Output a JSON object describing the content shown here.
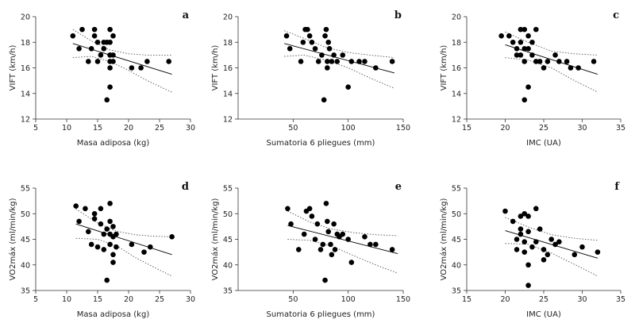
{
  "figure": {
    "panel_count": 6
  },
  "chart_data": [
    {
      "type": "scatter",
      "label": "a",
      "xlabel": "Masa adiposa (kg)",
      "ylabel": "VIFT (km/h)",
      "xlim": [
        5,
        30
      ],
      "ylim": [
        12,
        20
      ],
      "xticks": [
        5,
        10,
        15,
        20,
        25,
        30
      ],
      "yticks": [
        12,
        14,
        16,
        18,
        20
      ],
      "x": [
        11,
        12,
        12.5,
        13.5,
        14,
        14.5,
        14.5,
        15,
        15,
        15.5,
        16,
        16,
        16.5,
        16.5,
        17,
        17,
        17,
        17,
        17,
        17,
        17,
        17.5,
        17.5,
        17.5,
        20.5,
        22,
        23,
        26.5
      ],
      "y": [
        18.5,
        17.5,
        19,
        16.5,
        17.5,
        19,
        18.5,
        18,
        16.5,
        17,
        18,
        17.5,
        13.5,
        18,
        19,
        18,
        17,
        16.5,
        16,
        14.5,
        17,
        18.5,
        17,
        16.5,
        16,
        16,
        16.5,
        16.5
      ],
      "fit_line": [
        [
          11,
          17.9
        ],
        [
          27,
          15.5
        ]
      ],
      "ci_upper": [
        [
          11,
          19.0
        ],
        [
          14,
          18.1
        ],
        [
          17,
          17.4
        ],
        [
          20,
          17.1
        ],
        [
          23,
          17.0
        ],
        [
          27,
          17.0
        ]
      ],
      "ci_lower": [
        [
          11,
          16.8
        ],
        [
          14,
          16.9
        ],
        [
          17,
          16.5
        ],
        [
          20,
          15.8
        ],
        [
          23,
          15.0
        ],
        [
          27,
          14.1
        ]
      ],
      "colors": {
        "points": "#000000",
        "line": "#000000",
        "ci": "#555555"
      }
    },
    {
      "type": "scatter",
      "label": "b",
      "xlabel": "Sumatoria 6 pliegues (mm)",
      "ylabel": "VIFT (km/h)",
      "xlim": [
        0,
        150
      ],
      "ylim": [
        12,
        20
      ],
      "xticks": [
        50,
        100,
        150
      ],
      "yticks": [
        12,
        14,
        16,
        18,
        20
      ],
      "x": [
        44,
        47,
        57,
        59,
        61,
        63,
        65,
        67,
        70,
        73,
        76,
        78,
        79,
        80,
        81,
        81,
        82,
        83,
        85,
        87,
        90,
        95,
        100,
        103,
        110,
        115,
        125,
        140
      ],
      "y": [
        18.5,
        17.5,
        16.5,
        18,
        19,
        19,
        18.5,
        18,
        17.5,
        16.5,
        17,
        13.5,
        18.5,
        19,
        16.5,
        16,
        18,
        17.5,
        16.5,
        17,
        16.5,
        17,
        14.5,
        16.5,
        16.5,
        16.5,
        16,
        16.5
      ],
      "fit_line": [
        [
          42,
          17.9
        ],
        [
          142,
          15.6
        ]
      ],
      "ci_upper": [
        [
          42,
          18.9
        ],
        [
          60,
          18.3
        ],
        [
          80,
          17.6
        ],
        [
          100,
          17.2
        ],
        [
          120,
          17.0
        ],
        [
          142,
          16.8
        ]
      ],
      "ci_lower": [
        [
          42,
          16.9
        ],
        [
          60,
          17.0
        ],
        [
          80,
          16.6
        ],
        [
          100,
          16.0
        ],
        [
          120,
          15.2
        ],
        [
          142,
          14.4
        ]
      ],
      "colors": {
        "points": "#000000",
        "line": "#000000",
        "ci": "#555555"
      }
    },
    {
      "type": "scatter",
      "label": "c",
      "xlabel": "IMC (UA)",
      "ylabel": "VIFT (km/h)",
      "xlim": [
        15,
        35
      ],
      "ylim": [
        12,
        20
      ],
      "xticks": [
        15,
        20,
        25,
        30,
        35
      ],
      "yticks": [
        12,
        14,
        16,
        18,
        20
      ],
      "x": [
        19.5,
        20.5,
        21,
        21.5,
        21.5,
        22,
        22,
        22,
        22.5,
        22.5,
        22.5,
        22.5,
        23,
        23,
        23,
        23.5,
        23.5,
        24,
        24,
        24.5,
        25,
        25.5,
        26.5,
        27,
        28,
        28.5,
        29.5,
        31.5
      ],
      "y": [
        18.5,
        18.5,
        18,
        17.5,
        17,
        19,
        18,
        17,
        19,
        17.5,
        16.5,
        13.5,
        18.5,
        17.5,
        14.5,
        18,
        17,
        19,
        16.5,
        16.5,
        16,
        16.5,
        17,
        16.5,
        16.5,
        16,
        16,
        16.5
      ],
      "fit_line": [
        [
          20,
          17.8
        ],
        [
          32,
          15.5
        ]
      ],
      "ci_upper": [
        [
          20,
          18.8
        ],
        [
          23,
          18.0
        ],
        [
          26,
          17.3
        ],
        [
          29,
          17.1
        ],
        [
          32,
          17.0
        ]
      ],
      "ci_lower": [
        [
          20,
          16.8
        ],
        [
          23,
          16.6
        ],
        [
          26,
          16.0
        ],
        [
          29,
          15.0
        ],
        [
          32,
          14.1
        ]
      ],
      "colors": {
        "points": "#000000",
        "line": "#000000",
        "ci": "#555555"
      }
    },
    {
      "type": "scatter",
      "label": "d",
      "xlabel": "Masa adiposa (kg)",
      "ylabel": "VO2máx (ml/min/kg)",
      "xlim": [
        5,
        30
      ],
      "ylim": [
        35,
        55
      ],
      "xticks": [
        5,
        10,
        15,
        20,
        25,
        30
      ],
      "yticks": [
        35,
        40,
        45,
        50,
        55
      ],
      "x": [
        11.5,
        12,
        13,
        13.5,
        14,
        14.5,
        14.5,
        15,
        15.5,
        15.5,
        16,
        16,
        16.5,
        16.5,
        17,
        17,
        17,
        17,
        17.5,
        17.5,
        17.5,
        17.5,
        18,
        18,
        20.5,
        22.5,
        23.5,
        27
      ],
      "y": [
        51.5,
        48.5,
        51,
        46.5,
        44,
        50,
        49,
        43.5,
        51,
        48,
        46,
        43,
        47,
        37,
        52,
        48.5,
        46,
        44,
        47.5,
        45.5,
        42,
        40.5,
        46,
        43.5,
        44,
        42.5,
        43.5,
        45.5
      ],
      "fit_line": [
        [
          11.5,
          48
        ],
        [
          27,
          42
        ]
      ],
      "ci_upper": [
        [
          11.5,
          50.9
        ],
        [
          15,
          48.2
        ],
        [
          18,
          46.6
        ],
        [
          21,
          45.9
        ],
        [
          24,
          45.6
        ],
        [
          27,
          45.5
        ]
      ],
      "ci_lower": [
        [
          11.5,
          45.2
        ],
        [
          15,
          45.0
        ],
        [
          18,
          43.8
        ],
        [
          21,
          41.5
        ],
        [
          24,
          39.6
        ],
        [
          27,
          37.8
        ]
      ],
      "colors": {
        "points": "#000000",
        "line": "#000000",
        "ci": "#555555"
      }
    },
    {
      "type": "scatter",
      "label": "e",
      "xlabel": "Sumatoria 6 pliegues (mm)",
      "ylabel": "VO2máx (ml/min/kg)",
      "xlim": [
        0,
        150
      ],
      "ylim": [
        35,
        55
      ],
      "xticks": [
        50,
        100,
        150
      ],
      "yticks": [
        35,
        40,
        45,
        50,
        55
      ],
      "x": [
        45,
        48,
        55,
        60,
        62,
        65,
        67,
        70,
        72,
        75,
        77,
        79,
        80,
        81,
        82,
        84,
        85,
        87,
        88,
        90,
        92,
        95,
        100,
        103,
        115,
        120,
        125,
        140
      ],
      "y": [
        51,
        48,
        43,
        46,
        50.5,
        51,
        49.5,
        45,
        48,
        43,
        44,
        37,
        52,
        48.5,
        46.5,
        44,
        42,
        48,
        43,
        46,
        45.5,
        46,
        45,
        40.5,
        45.5,
        44,
        44,
        43
      ],
      "fit_line": [
        [
          45,
          47.7
        ],
        [
          145,
          42.2
        ]
      ],
      "ci_upper": [
        [
          45,
          50.5
        ],
        [
          65,
          48.4
        ],
        [
          85,
          47.0
        ],
        [
          105,
          46.3
        ],
        [
          125,
          45.9
        ],
        [
          145,
          45.7
        ]
      ],
      "ci_lower": [
        [
          45,
          45.0
        ],
        [
          65,
          44.8
        ],
        [
          85,
          43.7
        ],
        [
          105,
          41.8
        ],
        [
          125,
          40.0
        ],
        [
          145,
          38.4
        ]
      ],
      "colors": {
        "points": "#000000",
        "line": "#000000",
        "ci": "#555555"
      }
    },
    {
      "type": "scatter",
      "label": "f",
      "xlabel": "IMC (UA)",
      "ylabel": "VO2máx (ml/min/kg)",
      "xlim": [
        15,
        35
      ],
      "ylim": [
        35,
        55
      ],
      "xticks": [
        15,
        20,
        25,
        30,
        35
      ],
      "yticks": [
        35,
        40,
        45,
        50,
        55
      ],
      "x": [
        20,
        21,
        21.5,
        21.5,
        22,
        22,
        22,
        22.5,
        22.5,
        22.5,
        23,
        23,
        23,
        23,
        23.5,
        24,
        24,
        24.5,
        25,
        25,
        25.5,
        26,
        26.5,
        27,
        29,
        30,
        32
      ],
      "y": [
        50.5,
        48.5,
        45,
        43,
        49.5,
        47,
        46,
        50,
        44.5,
        42.5,
        49.5,
        46.5,
        40,
        36,
        43.5,
        51,
        44.5,
        47,
        43,
        41,
        42,
        45,
        44,
        44.5,
        42,
        43.5,
        42.5
      ],
      "fit_line": [
        [
          20,
          46.7
        ],
        [
          32,
          41.3
        ]
      ],
      "ci_upper": [
        [
          20,
          49.3
        ],
        [
          23,
          47.4
        ],
        [
          26,
          45.9
        ],
        [
          29,
          45.2
        ],
        [
          32,
          44.8
        ]
      ],
      "ci_lower": [
        [
          20,
          44.2
        ],
        [
          23,
          44.0
        ],
        [
          26,
          42.3
        ],
        [
          29,
          40.1
        ],
        [
          32,
          37.8
        ]
      ],
      "colors": {
        "points": "#000000",
        "line": "#000000",
        "ci": "#555555"
      }
    }
  ]
}
